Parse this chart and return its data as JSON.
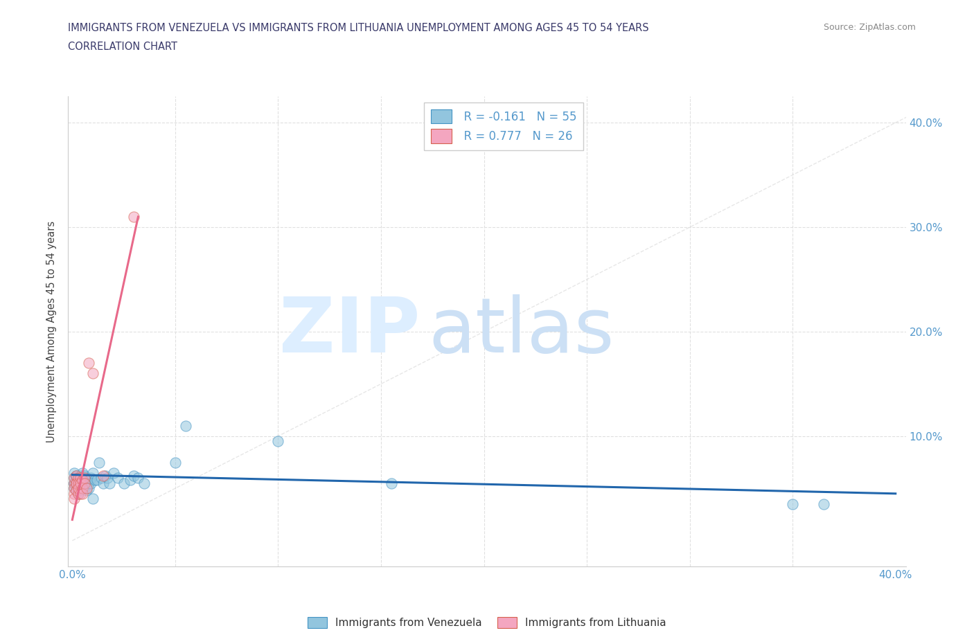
{
  "title_line1": "IMMIGRANTS FROM VENEZUELA VS IMMIGRANTS FROM LITHUANIA UNEMPLOYMENT AMONG AGES 45 TO 54 YEARS",
  "title_line2": "CORRELATION CHART",
  "source_text": "Source: ZipAtlas.com",
  "ylabel": "Unemployment Among Ages 45 to 54 years",
  "xlim": [
    -0.002,
    0.405
  ],
  "ylim": [
    -0.025,
    0.425
  ],
  "legend_label1": "Immigrants from Venezuela",
  "legend_label2": "Immigrants from Lithuania",
  "legend_R1": "R = -0.161",
  "legend_N1": "N = 55",
  "legend_R2": "R = 0.777",
  "legend_N2": "N = 26",
  "color_venezuela": "#92c5de",
  "color_lithuania": "#f4a6c0",
  "color_venezuela_edge": "#4393c3",
  "color_lithuania_edge": "#d6604d",
  "color_venezuela_line": "#2166ac",
  "color_lithuania_line": "#e8698a",
  "color_diag_line": "#dddddd",
  "title_color": "#3a3a6a",
  "axis_color": "#5599cc",
  "watermark_zip_color": "#ddeeff",
  "watermark_atlas_color": "#cce0f5",
  "venezuela_x": [
    0.001,
    0.001,
    0.001,
    0.001,
    0.001,
    0.002,
    0.002,
    0.002,
    0.002,
    0.002,
    0.003,
    0.003,
    0.003,
    0.003,
    0.004,
    0.004,
    0.004,
    0.004,
    0.005,
    0.005,
    0.005,
    0.005,
    0.006,
    0.006,
    0.006,
    0.007,
    0.007,
    0.007,
    0.008,
    0.008,
    0.009,
    0.009,
    0.01,
    0.01,
    0.011,
    0.012,
    0.013,
    0.014,
    0.015,
    0.016,
    0.017,
    0.018,
    0.02,
    0.022,
    0.025,
    0.028,
    0.03,
    0.032,
    0.035,
    0.05,
    0.055,
    0.1,
    0.155,
    0.35,
    0.365
  ],
  "venezuela_y": [
    0.055,
    0.06,
    0.065,
    0.055,
    0.05,
    0.058,
    0.06,
    0.05,
    0.055,
    0.062,
    0.055,
    0.058,
    0.06,
    0.045,
    0.055,
    0.062,
    0.058,
    0.048,
    0.06,
    0.055,
    0.05,
    0.065,
    0.062,
    0.055,
    0.05,
    0.06,
    0.055,
    0.048,
    0.055,
    0.05,
    0.06,
    0.055,
    0.065,
    0.04,
    0.058,
    0.058,
    0.075,
    0.06,
    0.055,
    0.062,
    0.06,
    0.055,
    0.065,
    0.06,
    0.055,
    0.058,
    0.062,
    0.06,
    0.055,
    0.075,
    0.11,
    0.095,
    0.055,
    0.035,
    0.035
  ],
  "lithuania_x": [
    0.001,
    0.001,
    0.001,
    0.001,
    0.001,
    0.002,
    0.002,
    0.002,
    0.002,
    0.003,
    0.003,
    0.003,
    0.003,
    0.004,
    0.004,
    0.004,
    0.005,
    0.005,
    0.005,
    0.006,
    0.006,
    0.007,
    0.008,
    0.01,
    0.015,
    0.03
  ],
  "lithuania_y": [
    0.055,
    0.06,
    0.05,
    0.045,
    0.04,
    0.055,
    0.048,
    0.062,
    0.055,
    0.06,
    0.045,
    0.055,
    0.05,
    0.06,
    0.045,
    0.055,
    0.058,
    0.05,
    0.045,
    0.06,
    0.055,
    0.05,
    0.17,
    0.16,
    0.062,
    0.31
  ],
  "ven_line_x": [
    0.0,
    0.4
  ],
  "ven_line_y": [
    0.063,
    0.045
  ],
  "lit_line_x": [
    0.0,
    0.032
  ],
  "lit_line_y": [
    0.02,
    0.31
  ]
}
